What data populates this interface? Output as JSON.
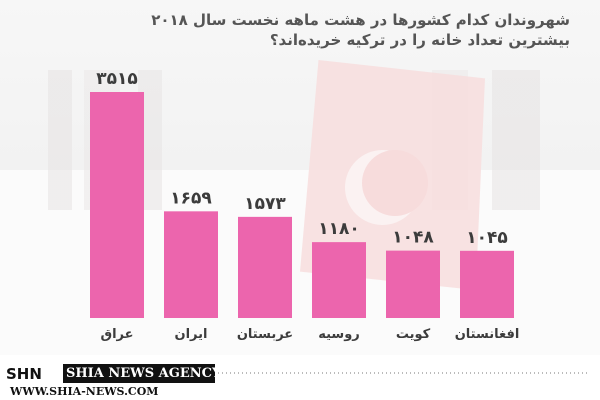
{
  "chart_data": {
    "type": "bar",
    "title_line1": "شهروندان کدام کشورها در هشت ماهه نخست سال ۲۰۱۸",
    "title_line2": "بیشترین تعداد خانه را در ترکیه خریده‌اند؟",
    "categories": [
      "عراق",
      "ایران",
      "عربستان",
      "روسیه",
      "کویت",
      "افغانستان"
    ],
    "values": [
      3515,
      1659,
      1573,
      1180,
      1048,
      1045
    ],
    "value_labels": [
      "۳۵۱۵",
      "۱۶۵۹",
      "۱۵۷۳",
      "۱۱۸۰",
      "۱۰۴۸",
      "۱۰۴۵"
    ],
    "ylim": [
      0,
      3515
    ],
    "grid": false,
    "colors": {
      "bar": "#ec65ad",
      "text": "#3c3c3c"
    }
  },
  "footer": {
    "logo": "SHN",
    "agency": "SHIA NEWS AGENCY",
    "site": "WWW.SHIA-NEWS.COM"
  }
}
